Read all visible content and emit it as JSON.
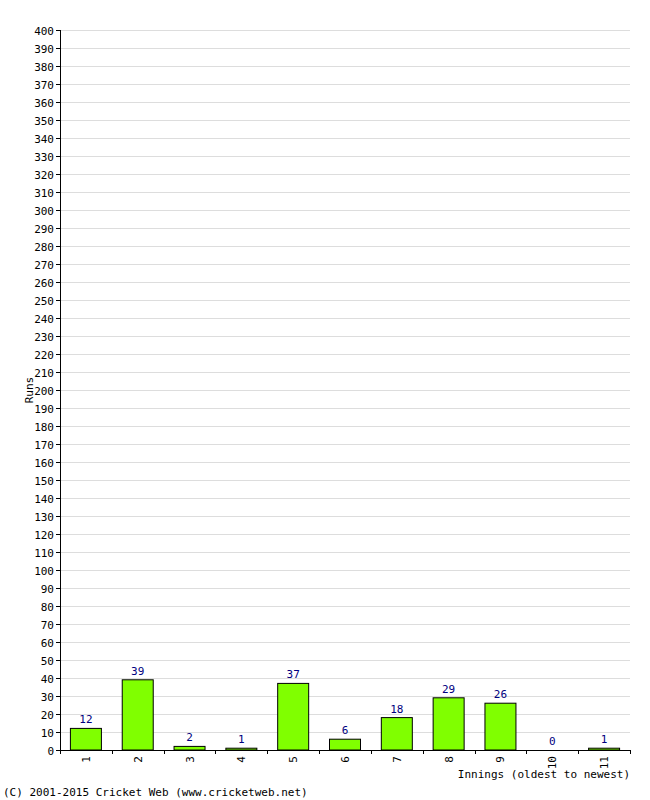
{
  "chart_data": {
    "type": "bar",
    "categories": [
      "1",
      "2",
      "3",
      "4",
      "5",
      "6",
      "7",
      "8",
      "9",
      "10",
      "11"
    ],
    "values": [
      12,
      39,
      2,
      1,
      37,
      6,
      18,
      29,
      26,
      0,
      1
    ],
    "color": "#80ff00",
    "y_label": "Runs",
    "x_label": "Innings (oldest to newest)",
    "footer": "(C) 2001-2015 Cricket Web (www.cricketweb.net)",
    "ylim": [
      0,
      400
    ],
    "yticks": [
      0,
      10,
      20,
      30,
      40,
      50,
      60,
      70,
      80,
      90,
      100,
      110,
      120,
      130,
      140,
      150,
      160,
      170,
      180,
      190,
      200,
      210,
      220,
      230,
      240,
      250,
      260,
      270,
      280,
      290,
      300,
      310,
      320,
      330,
      340,
      350,
      360,
      370,
      380,
      390,
      400
    ],
    "grid": true,
    "data_labels": true
  }
}
